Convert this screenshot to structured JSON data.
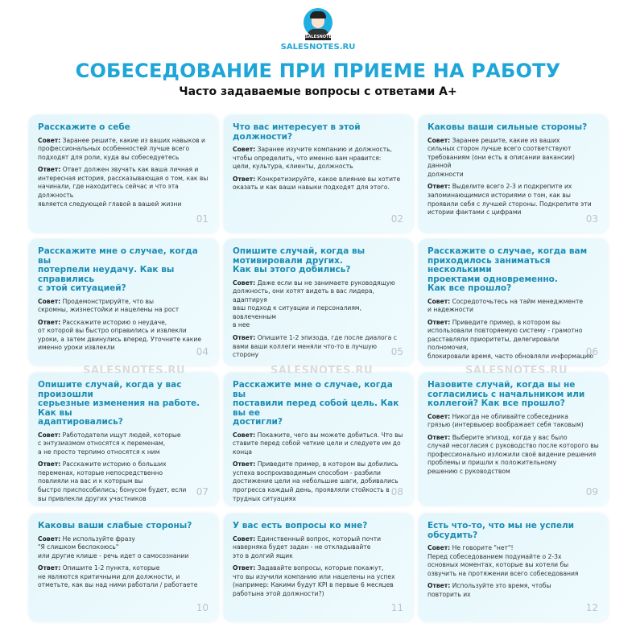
{
  "header": {
    "logo_badge": "SALESNOTES",
    "site": "SALESNOTES.RU",
    "title": "СОБЕСЕДОВАНИЕ ПРИ ПРИЕМЕ НА РАБОТУ",
    "subtitle": "Часто задаваемые вопросы с ответами A+"
  },
  "labels": {
    "tip": "Совет:",
    "answer": "Ответ:"
  },
  "watermark": "SALESNOTES.RU",
  "colors": {
    "accent": "#1ea6d8",
    "heading": "#1b8db3",
    "card_bg": "#e9f8fc"
  },
  "cards": [
    {
      "q": "Расскажите о себе",
      "tip": "Заранее решите, какие из ваших навыков и\nпрофессиональных особенностей лучше всего\nподходят для роли, куда вы собеседуетесь",
      "answer": "Ответ должен звучать как ваша личная и\nинтересная история, рассказывающая о том, как вы\nначинали, где находитесь сейчас и что эта должность\nявляется следующей главой в вашей жизни",
      "num": "01"
    },
    {
      "q": "Что вас интересует в этой должности?",
      "tip": "Заранее изучите компанию и должность,\nчтобы определить, что именно вам нравится:\nцели, культура, клиенты, должность",
      "answer": "Конкретизируйте, какое влияние вы хотите\nоказать и как ваши навыки подходят для этого.",
      "num": "02"
    },
    {
      "q": "Каковы ваши сильные стороны?",
      "tip": "Заранее решите, какие из ваших\nсильных сторон лучше всего соответствуют\nтребованиям (они есть в описании вакансии) данной\nдолжности",
      "answer": "Выделите всего 2-3 и подкрепите их\nзапоминающимися историями о том, как вы\nпроявили себя с лучшей стороны. Подкрепите эти\nистории фактами с цифрами",
      "num": "03"
    },
    {
      "q": "Расскажите мне о случае, когда вы\nпотерпели неудачу. Как вы справились\nс этой ситуацией?",
      "tip": "Продемонстрируйте, что вы\nскромны, жизнестойки и нацелены на рост",
      "answer": "Расскажите историю о неудаче,\nот которой вы быстро оправились и извлекли\nуроки, а затем двинулись вперед. Уточните какие\nименно уроки извлекли",
      "num": "04"
    },
    {
      "q": "Опишите случай, когда вы\nмотивировали других.\nКак вы этого добились?",
      "tip": "Даже если вы не занимаете руководящую\nдолжность, они хотят видеть в вас лидера, адаптируя\nваш подход к ситуации и персоналиям, вовлеченным\nв нее",
      "answer": "Опишите 1-2 эпизода, где после диалога с\nвами ваши коллеги меняли что-то в лучшую сторону",
      "num": "05"
    },
    {
      "q": "Расскажите о случае, когда вам\nприходилось заниматься несколькими\nпроектами одновременно.\nКак все прошло?",
      "tip": "Сосредоточьтесь на тайм менеджменте\nи надежности",
      "answer": "Приведите пример,  в котором вы\nиспользовали повторяемую систему - грамотно\nрасставляли приоритеты, делегировали полномочия,\nблокировали время, часто обновляли информацию",
      "num": "06"
    },
    {
      "q": "Опишите случай, когда у вас произошли\nсерьезные изменения на работе. Как вы\nадаптировались?",
      "tip": "Работодатели ищут людей, которые\nс энтузиазмом относятся к переменам,\nа не просто терпимо относятся к ним",
      "answer": "Расскажите историю о больших\nпеременах, которые непосредственно\nповлияли на вас и к которым вы\nбыстро приспособились; бонусом будет, если\nвы привлекли других участников",
      "num": "07"
    },
    {
      "q": "Расскажите мне о случае, когда вы\nпоставили перед собой цель. Как вы ее\nдостигли?",
      "tip": "Покажите, чего вы можете добиться. Что вы\nставите перед собой четкие цели и следуете им до\nконца",
      "answer": "Приведите пример, в котором вы добились\nуспеха воспроизводимым способом - разбили\nдостижение цели на небольшие шаги, добивались\nпрогресса каждый день, проявляли стойкость в\nтрудных ситуациях",
      "num": "08"
    },
    {
      "q": "Назовите случай, когда вы не\nсогласились с начальником или\nколлегой? Как все прошло?",
      "tip": "Никогда не обливайте собеседника\nгрязью (интервьюер воображает себя таковым)",
      "answer": "Выберите эпизод, когда у вас было\nслучай несогласия с руководство после которого вы\nпрофессионально изложили своё видение решения\nпроблемы  и пришли к положительному\nрешению с руководством",
      "num": "09"
    },
    {
      "q": "Каковы ваши слабые стороны?",
      "tip": "Не используйте фразу\n\"Я слишком беспокоюсь\"\nили другие клише - речь идет о самосознании",
      "answer": "Опишите 1-2 пункта, которые\nне являются критичными для должности, и\nотметьте, как вы над ними работали / работаете",
      "num": "10"
    },
    {
      "q": "У вас есть вопросы ко мне?",
      "tip": "Единственный вопрос, который почти\nнаверняка будет задан - не откладывайте\nэто в долгий ящик",
      "answer": "Задавайте вопросы, которые покажут,\nчто вы изучили компанию или нацелены на успех\n(например: Какими будут KPI в первые 6 месяцев\nработына этой должности?)",
      "num": "11"
    },
    {
      "q": "Есть что-то, что мы не успели обсудить?",
      "tip": "Не говорите \"нет\"!\nПеред собеседованием подумайте о 2-3х\nосновных моментах, которые вы хотели бы\nозвучить на протяжении всего собеседования",
      "answer": "Используйте это время, чтобы\nповторить их",
      "num": "12"
    }
  ]
}
